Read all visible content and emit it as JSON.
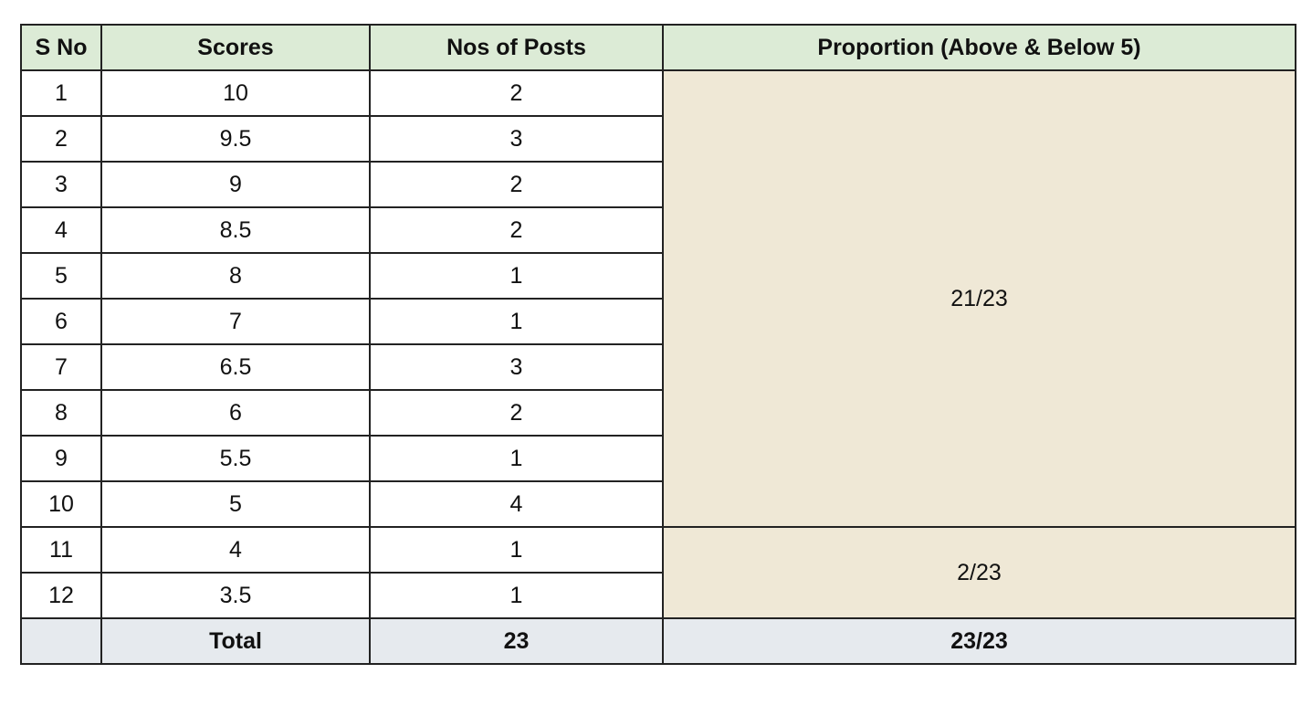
{
  "table": {
    "headers": [
      "S No",
      "Scores",
      "Nos of Posts",
      "Proportion (Above & Below 5)"
    ],
    "rows": [
      {
        "sno": "1",
        "score": "10",
        "posts": "2"
      },
      {
        "sno": "2",
        "score": "9.5",
        "posts": "3"
      },
      {
        "sno": "3",
        "score": "9",
        "posts": "2"
      },
      {
        "sno": "4",
        "score": "8.5",
        "posts": "2"
      },
      {
        "sno": "5",
        "score": "8",
        "posts": "1"
      },
      {
        "sno": "6",
        "score": "7",
        "posts": "1"
      },
      {
        "sno": "7",
        "score": "6.5",
        "posts": "3"
      },
      {
        "sno": "8",
        "score": "6",
        "posts": "2"
      },
      {
        "sno": "9",
        "score": "5.5",
        "posts": "1"
      },
      {
        "sno": "10",
        "score": "5",
        "posts": "4"
      },
      {
        "sno": "11",
        "score": "4",
        "posts": "1"
      },
      {
        "sno": "12",
        "score": "3.5",
        "posts": "1"
      }
    ],
    "proportions": {
      "above": "21/23",
      "below": "2/23"
    },
    "total": {
      "sno": "",
      "label": "Total",
      "posts": "23",
      "proportion": "23/23"
    },
    "colors": {
      "header_bg": "#dcebd6",
      "proportion_bg": "#efe8d6",
      "total_bg": "#e6eaee",
      "border": "#222222"
    }
  }
}
